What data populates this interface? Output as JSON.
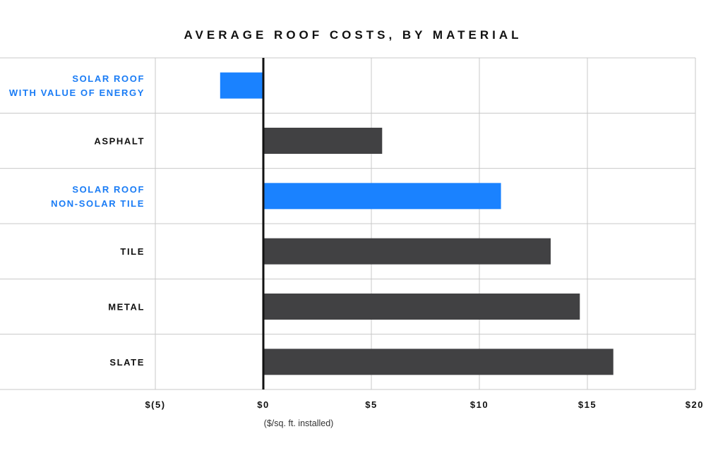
{
  "chart_data": {
    "type": "bar",
    "orientation": "horizontal",
    "title": "AVERAGE ROOF COSTS, BY MATERIAL",
    "xlabel": "($/sq. ft. installed)",
    "xlim": [
      -5,
      20
    ],
    "xticks": [
      -5,
      0,
      5,
      10,
      15,
      20
    ],
    "xtick_labels": [
      "$(5)",
      "$0",
      "$5",
      "$10",
      "$15",
      "$20"
    ],
    "grid": true,
    "categories": [
      {
        "lines": [
          "SOLAR ROOF",
          "WITH VALUE OF ENERGY"
        ],
        "highlight": true
      },
      {
        "lines": [
          "ASPHALT"
        ],
        "highlight": false
      },
      {
        "lines": [
          "SOLAR ROOF",
          "NON-SOLAR TILE"
        ],
        "highlight": true
      },
      {
        "lines": [
          "TILE"
        ],
        "highlight": false
      },
      {
        "lines": [
          "METAL"
        ],
        "highlight": false
      },
      {
        "lines": [
          "SLATE"
        ],
        "highlight": false
      }
    ],
    "values": [
      -2,
      5.5,
      11,
      13.3,
      14.65,
      16.2
    ],
    "colors": {
      "highlight_bar": "#1a82ff",
      "highlight_label": "#1a7cf5",
      "default_bar": "#414143",
      "default_label": "#111111",
      "grid": "#c8c8c8",
      "zero_line": "#111111"
    }
  }
}
